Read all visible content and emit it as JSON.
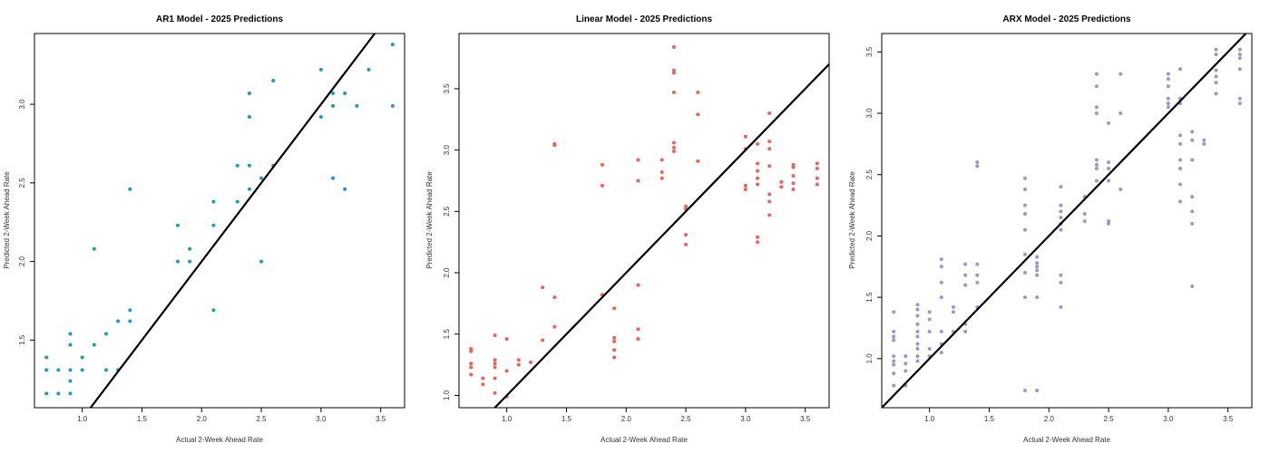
{
  "chart_data": [
    {
      "type": "scatter",
      "title": "AR1 Model - 2025 Predictions",
      "xlabel": "Actual 2-Week Ahead Rate",
      "ylabel": "Predicted 2-Week Ahead Rate",
      "xlim": [
        0.6,
        3.7
      ],
      "ylim": [
        1.07,
        3.45
      ],
      "xticks": [
        "1.0",
        "1.5",
        "2.0",
        "2.5",
        "3.0",
        "3.5"
      ],
      "yticks": [
        "1.5",
        "2.0",
        "2.5",
        "3.0"
      ],
      "color": "#2596be",
      "reference_line": {
        "slope": 1,
        "intercept": 0
      },
      "series": [
        {
          "values": [
            [
              0.7,
              1.39
            ],
            [
              0.7,
              1.31
            ],
            [
              0.7,
              1.16
            ],
            [
              0.8,
              1.31
            ],
            [
              0.8,
              1.16
            ],
            [
              0.9,
              1.54
            ],
            [
              0.9,
              1.47
            ],
            [
              0.9,
              1.31
            ],
            [
              0.9,
              1.24
            ],
            [
              0.9,
              1.16
            ],
            [
              1.0,
              1.39
            ],
            [
              1.0,
              1.31
            ],
            [
              1.1,
              1.47
            ],
            [
              1.1,
              2.08
            ],
            [
              1.2,
              1.54
            ],
            [
              1.2,
              1.31
            ],
            [
              1.3,
              1.62
            ],
            [
              1.3,
              1.31
            ],
            [
              1.4,
              1.69
            ],
            [
              1.4,
              1.62
            ],
            [
              1.4,
              2.46
            ],
            [
              1.8,
              2.23
            ],
            [
              1.8,
              2.0
            ],
            [
              1.9,
              2.08
            ],
            [
              1.9,
              2.0
            ],
            [
              2.1,
              2.38
            ],
            [
              2.1,
              2.23
            ],
            [
              2.1,
              1.69
            ],
            [
              2.3,
              2.61
            ],
            [
              2.3,
              2.38
            ],
            [
              2.4,
              3.07
            ],
            [
              2.4,
              2.92
            ],
            [
              2.4,
              2.61
            ],
            [
              2.4,
              2.46
            ],
            [
              2.5,
              2.53
            ],
            [
              2.5,
              2.0
            ],
            [
              2.6,
              3.15
            ],
            [
              2.6,
              2.61
            ],
            [
              3.0,
              3.22
            ],
            [
              3.0,
              2.92
            ],
            [
              3.1,
              3.07
            ],
            [
              3.1,
              2.99
            ],
            [
              3.1,
              2.53
            ],
            [
              3.2,
              3.07
            ],
            [
              3.2,
              2.46
            ],
            [
              3.3,
              2.99
            ],
            [
              3.4,
              3.22
            ],
            [
              3.6,
              3.38
            ],
            [
              3.6,
              2.99
            ]
          ]
        }
      ]
    },
    {
      "type": "scatter",
      "title": "Linear Model - 2025 Predictions",
      "xlabel": "Actual 2-Week Ahead Rate",
      "ylabel": "Predicted 2-Week Ahead Rate",
      "xlim": [
        0.6,
        3.7
      ],
      "ylim": [
        0.9,
        3.95
      ],
      "xticks": [
        "1.0",
        "1.5",
        "2.0",
        "2.5",
        "3.0",
        "3.5"
      ],
      "yticks": [
        "1.0",
        "1.5",
        "2.0",
        "2.5",
        "3.0",
        "3.5"
      ],
      "color": "#e8635a",
      "reference_line": {
        "slope": 1,
        "intercept": 0
      },
      "series": [
        {
          "values": [
            [
              0.7,
              1.38
            ],
            [
              0.7,
              1.36
            ],
            [
              0.7,
              1.26
            ],
            [
              0.7,
              1.23
            ],
            [
              0.7,
              1.17
            ],
            [
              0.8,
              1.14
            ],
            [
              0.8,
              1.09
            ],
            [
              0.9,
              1.49
            ],
            [
              0.9,
              1.29
            ],
            [
              0.9,
              1.26
            ],
            [
              0.9,
              1.23
            ],
            [
              0.9,
              1.14
            ],
            [
              0.9,
              1.02
            ],
            [
              1.0,
              1.46
            ],
            [
              1.0,
              1.2
            ],
            [
              1.0,
              0.99
            ],
            [
              1.1,
              1.29
            ],
            [
              1.1,
              1.25
            ],
            [
              1.2,
              1.27
            ],
            [
              1.3,
              1.88
            ],
            [
              1.3,
              1.45
            ],
            [
              1.4,
              3.05
            ],
            [
              1.4,
              3.04
            ],
            [
              1.4,
              1.8
            ],
            [
              1.4,
              1.56
            ],
            [
              1.8,
              2.88
            ],
            [
              1.8,
              2.71
            ],
            [
              1.8,
              1.82
            ],
            [
              1.9,
              1.71
            ],
            [
              1.9,
              1.47
            ],
            [
              1.9,
              1.44
            ],
            [
              1.9,
              1.37
            ],
            [
              1.9,
              1.31
            ],
            [
              2.1,
              2.92
            ],
            [
              2.1,
              2.75
            ],
            [
              2.1,
              1.9
            ],
            [
              2.1,
              1.54
            ],
            [
              2.1,
              1.46
            ],
            [
              2.3,
              2.92
            ],
            [
              2.3,
              2.82
            ],
            [
              2.3,
              2.77
            ],
            [
              2.4,
              3.84
            ],
            [
              2.4,
              3.65
            ],
            [
              2.4,
              3.63
            ],
            [
              2.4,
              3.47
            ],
            [
              2.4,
              3.06
            ],
            [
              2.4,
              3.02
            ],
            [
              2.4,
              2.99
            ],
            [
              2.5,
              2.54
            ],
            [
              2.5,
              2.52
            ],
            [
              2.5,
              2.31
            ],
            [
              2.5,
              2.23
            ],
            [
              2.6,
              3.47
            ],
            [
              2.6,
              3.29
            ],
            [
              2.6,
              2.91
            ],
            [
              3.0,
              3.11
            ],
            [
              3.0,
              3.01
            ],
            [
              3.0,
              2.71
            ],
            [
              3.0,
              2.68
            ],
            [
              3.1,
              3.05
            ],
            [
              3.1,
              2.89
            ],
            [
              3.1,
              2.83
            ],
            [
              3.1,
              2.77
            ],
            [
              3.1,
              2.72
            ],
            [
              3.1,
              2.29
            ],
            [
              3.1,
              2.25
            ],
            [
              3.2,
              3.3
            ],
            [
              3.2,
              3.07
            ],
            [
              3.2,
              3.01
            ],
            [
              3.2,
              2.87
            ],
            [
              3.2,
              2.64
            ],
            [
              3.2,
              2.58
            ],
            [
              3.2,
              2.47
            ],
            [
              3.3,
              2.74
            ],
            [
              3.3,
              2.7
            ],
            [
              3.4,
              2.88
            ],
            [
              3.4,
              2.86
            ],
            [
              3.4,
              2.79
            ],
            [
              3.4,
              2.73
            ],
            [
              3.4,
              2.68
            ],
            [
              3.6,
              2.89
            ],
            [
              3.6,
              2.85
            ],
            [
              3.6,
              2.77
            ],
            [
              3.6,
              2.72
            ]
          ]
        }
      ]
    },
    {
      "type": "scatter",
      "title": "ARX Model - 2025 Predictions",
      "xlabel": "Actual 2-Week Ahead Rate",
      "ylabel": "Predicted 2-Week Ahead Rate",
      "xlim": [
        0.6,
        3.7
      ],
      "ylim": [
        0.6,
        3.65
      ],
      "xticks": [
        "1.0",
        "1.5",
        "2.0",
        "2.5",
        "3.0",
        "3.5"
      ],
      "yticks": [
        "1.0",
        "1.5",
        "2.0",
        "2.5",
        "3.0",
        "3.5"
      ],
      "color": "#9b97c9",
      "reference_line": {
        "slope": 1,
        "intercept": 0
      },
      "series": [
        {
          "values": [
            [
              0.7,
              1.38
            ],
            [
              0.7,
              1.22
            ],
            [
              0.7,
              1.18
            ],
            [
              0.7,
              1.15
            ],
            [
              0.7,
              1.02
            ],
            [
              0.7,
              0.98
            ],
            [
              0.7,
              0.95
            ],
            [
              0.7,
              0.88
            ],
            [
              0.7,
              0.78
            ],
            [
              0.8,
              1.02
            ],
            [
              0.8,
              0.96
            ],
            [
              0.8,
              0.9
            ],
            [
              0.8,
              0.78
            ],
            [
              0.9,
              1.44
            ],
            [
              0.9,
              1.4
            ],
            [
              0.9,
              1.35
            ],
            [
              0.9,
              1.28
            ],
            [
              0.9,
              1.22
            ],
            [
              0.9,
              1.18
            ],
            [
              0.9,
              1.12
            ],
            [
              0.9,
              1.08
            ],
            [
              0.9,
              1.02
            ],
            [
              0.9,
              0.98
            ],
            [
              1.0,
              1.38
            ],
            [
              1.0,
              1.32
            ],
            [
              1.0,
              1.22
            ],
            [
              1.0,
              1.08
            ],
            [
              1.0,
              1.02
            ],
            [
              1.1,
              1.81
            ],
            [
              1.1,
              1.75
            ],
            [
              1.1,
              1.62
            ],
            [
              1.1,
              1.5
            ],
            [
              1.1,
              1.22
            ],
            [
              1.1,
              1.12
            ],
            [
              1.1,
              1.05
            ],
            [
              1.2,
              1.42
            ],
            [
              1.2,
              1.38
            ],
            [
              1.2,
              1.22
            ],
            [
              1.3,
              1.77
            ],
            [
              1.3,
              1.68
            ],
            [
              1.3,
              1.6
            ],
            [
              1.3,
              1.28
            ],
            [
              1.3,
              1.22
            ],
            [
              1.4,
              2.6
            ],
            [
              1.4,
              2.57
            ],
            [
              1.4,
              1.77
            ],
            [
              1.4,
              1.68
            ],
            [
              1.4,
              1.62
            ],
            [
              1.4,
              1.42
            ],
            [
              1.8,
              2.47
            ],
            [
              1.8,
              2.38
            ],
            [
              1.8,
              2.25
            ],
            [
              1.8,
              2.18
            ],
            [
              1.8,
              2.05
            ],
            [
              1.8,
              1.85
            ],
            [
              1.8,
              1.7
            ],
            [
              1.8,
              1.5
            ],
            [
              1.8,
              0.74
            ],
            [
              1.9,
              1.83
            ],
            [
              1.9,
              1.78
            ],
            [
              1.9,
              1.75
            ],
            [
              1.9,
              1.72
            ],
            [
              1.9,
              1.68
            ],
            [
              1.9,
              1.5
            ],
            [
              1.9,
              0.74
            ],
            [
              2.1,
              2.4
            ],
            [
              2.1,
              2.25
            ],
            [
              2.1,
              2.2
            ],
            [
              2.1,
              2.15
            ],
            [
              2.1,
              2.1
            ],
            [
              2.1,
              2.05
            ],
            [
              2.1,
              1.68
            ],
            [
              2.1,
              1.62
            ],
            [
              2.1,
              1.42
            ],
            [
              2.3,
              2.32
            ],
            [
              2.3,
              2.18
            ],
            [
              2.3,
              2.12
            ],
            [
              2.4,
              3.32
            ],
            [
              2.4,
              3.22
            ],
            [
              2.4,
              3.05
            ],
            [
              2.4,
              3.0
            ],
            [
              2.4,
              2.62
            ],
            [
              2.4,
              2.58
            ],
            [
              2.4,
              2.55
            ],
            [
              2.4,
              2.45
            ],
            [
              2.5,
              2.92
            ],
            [
              2.5,
              2.6
            ],
            [
              2.5,
              2.55
            ],
            [
              2.5,
              2.45
            ],
            [
              2.5,
              2.12
            ],
            [
              2.5,
              2.1
            ],
            [
              2.6,
              3.32
            ],
            [
              2.6,
              3.0
            ],
            [
              2.6,
              2.38
            ],
            [
              3.0,
              3.32
            ],
            [
              3.0,
              3.28
            ],
            [
              3.0,
              3.22
            ],
            [
              3.0,
              3.12
            ],
            [
              3.0,
              3.08
            ],
            [
              3.0,
              3.05
            ],
            [
              3.1,
              3.36
            ],
            [
              3.1,
              3.12
            ],
            [
              3.1,
              3.08
            ],
            [
              3.1,
              2.82
            ],
            [
              3.1,
              2.75
            ],
            [
              3.1,
              2.62
            ],
            [
              3.1,
              2.55
            ],
            [
              3.1,
              2.42
            ],
            [
              3.1,
              2.28
            ],
            [
              3.2,
              2.85
            ],
            [
              3.2,
              2.78
            ],
            [
              3.2,
              2.62
            ],
            [
              3.2,
              2.32
            ],
            [
              3.2,
              2.2
            ],
            [
              3.2,
              2.1
            ],
            [
              3.2,
              1.59
            ],
            [
              3.3,
              2.78
            ],
            [
              3.3,
              2.75
            ],
            [
              3.4,
              3.52
            ],
            [
              3.4,
              3.48
            ],
            [
              3.4,
              3.35
            ],
            [
              3.4,
              3.3
            ],
            [
              3.4,
              3.25
            ],
            [
              3.4,
              3.16
            ],
            [
              3.6,
              3.52
            ],
            [
              3.6,
              3.48
            ],
            [
              3.6,
              3.45
            ],
            [
              3.6,
              3.36
            ],
            [
              3.6,
              3.12
            ],
            [
              3.6,
              3.08
            ]
          ]
        }
      ]
    }
  ]
}
